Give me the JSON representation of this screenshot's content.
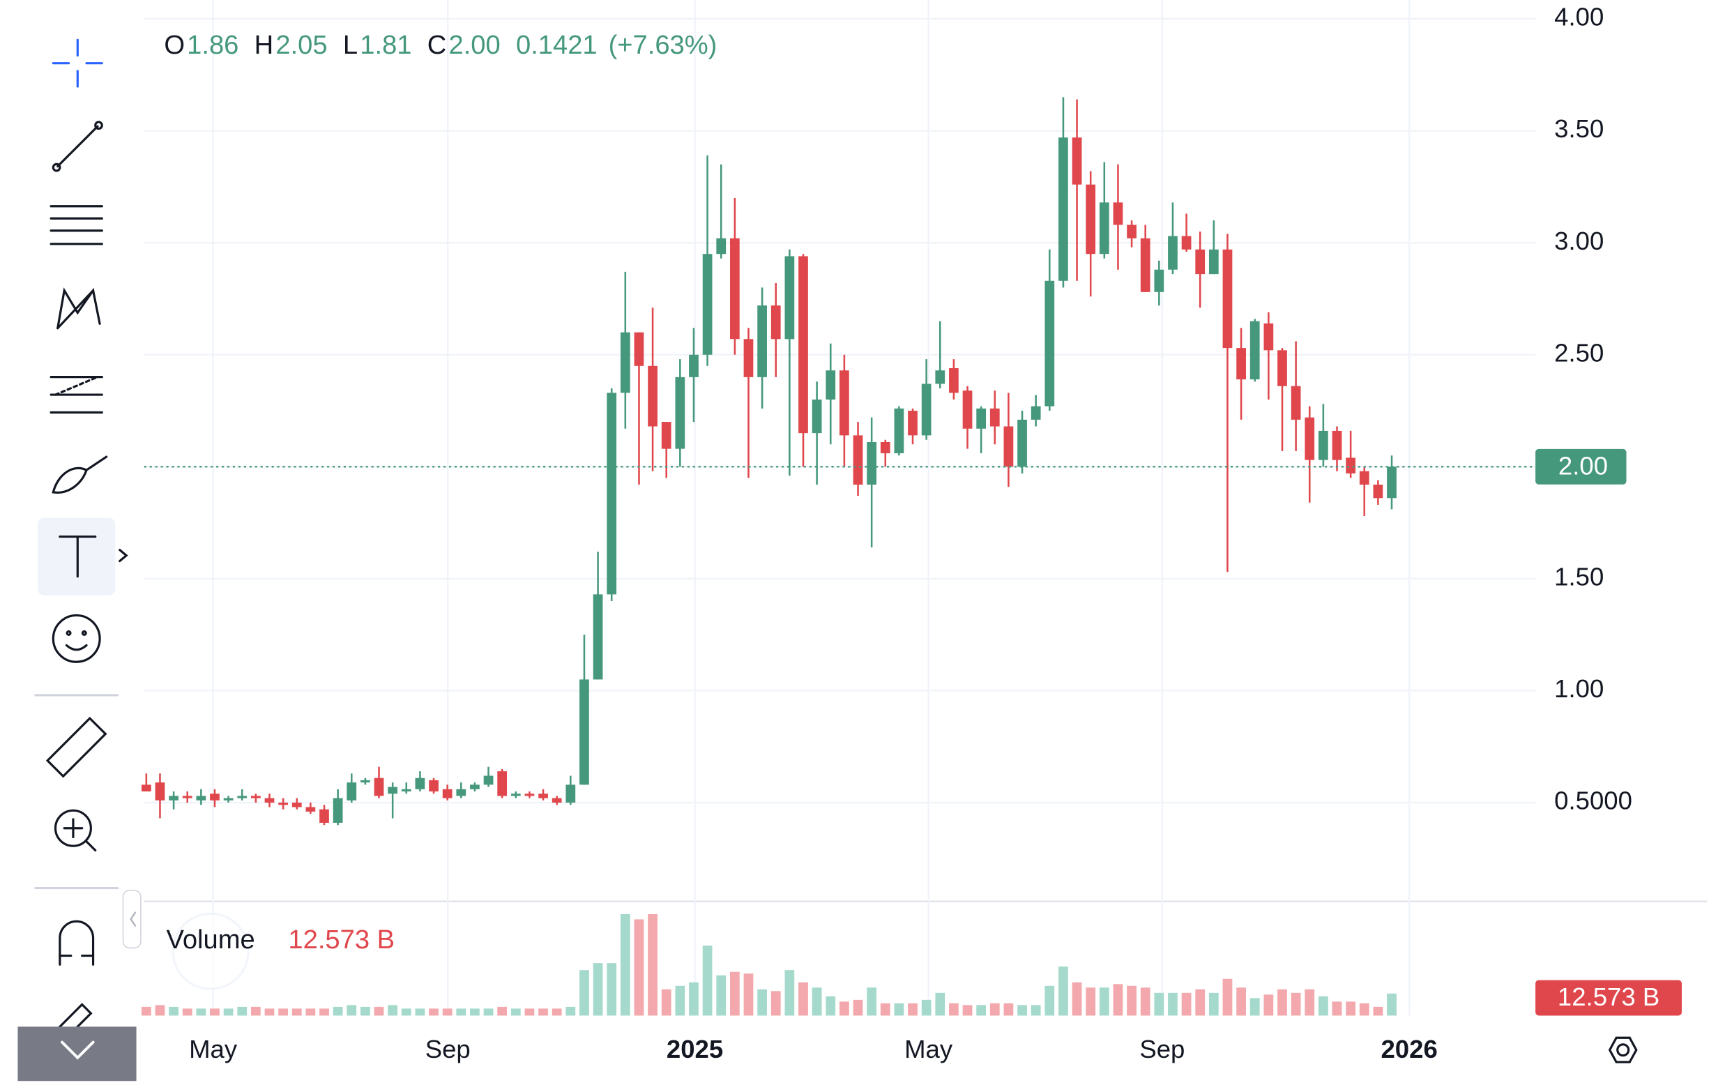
{
  "chart_data": {
    "type": "candlestick",
    "legend": {
      "labels": [
        "O",
        "H",
        "L",
        "C"
      ],
      "values": [
        {
          "value": 1.86,
          "label": "1.86"
        },
        {
          "value": 2.05,
          "label": "2.05"
        },
        {
          "value": 1.81,
          "label": "1.81"
        },
        {
          "value": 2.0,
          "label": "2.00"
        }
      ],
      "change": 0.1421,
      "change_percent_label": "(+7.63%)"
    },
    "categories": [
      null,
      null,
      null,
      null,
      null,
      null,
      null,
      null,
      null,
      null,
      null,
      null,
      null,
      null,
      null,
      null,
      null,
      null,
      null,
      null,
      null,
      null,
      null,
      null,
      null,
      null,
      null,
      null,
      null,
      null,
      null,
      null,
      null,
      null,
      null,
      null,
      null,
      null,
      null,
      null,
      null,
      null,
      null,
      null,
      null,
      null,
      null,
      null,
      null,
      null,
      null,
      null,
      null,
      null,
      null,
      null,
      null,
      null,
      null,
      null,
      null,
      null,
      null,
      null,
      null,
      null,
      null,
      null,
      null,
      null,
      null,
      null,
      null,
      null,
      null,
      null,
      null,
      null,
      null,
      null,
      null,
      null,
      null,
      null,
      null,
      null,
      null,
      null,
      null,
      null,
      null,
      null
    ],
    "open": [
      0.58,
      0.59,
      0.51,
      0.53,
      0.51,
      0.54,
      0.51,
      0.52,
      0.53,
      0.52,
      0.5,
      0.5,
      0.48,
      0.47,
      0.41,
      0.51,
      0.59,
      0.61,
      0.54,
      0.55,
      0.56,
      0.6,
      0.56,
      0.53,
      0.56,
      0.58,
      0.64,
      0.53,
      0.54,
      0.54,
      0.52,
      0.5,
      0.58,
      1.05,
      1.43,
      2.33,
      2.6,
      2.45,
      2.2,
      2.08,
      2.4,
      2.5,
      2.95,
      3.02,
      2.57,
      2.4,
      2.72,
      2.57,
      2.94,
      2.15,
      2.3,
      2.43,
      2.14,
      1.92,
      2.11,
      2.06,
      2.25,
      2.14,
      2.37,
      2.44,
      2.34,
      2.17,
      2.26,
      2.18,
      2.0,
      2.21,
      2.27,
      2.83,
      3.47,
      3.26,
      2.95,
      3.18,
      3.08,
      3.02,
      2.78,
      2.88,
      3.03,
      2.97,
      2.86,
      2.97,
      2.53,
      2.39,
      2.64,
      2.52,
      2.36,
      2.22,
      2.03,
      2.16,
      2.04,
      1.98,
      1.92,
      1.86
    ],
    "high": [
      0.63,
      0.63,
      0.55,
      0.55,
      0.56,
      0.56,
      0.53,
      0.56,
      0.54,
      0.54,
      0.52,
      0.52,
      0.5,
      0.49,
      0.56,
      0.63,
      0.61,
      0.66,
      0.59,
      0.59,
      0.64,
      0.61,
      0.58,
      0.59,
      0.59,
      0.66,
      0.65,
      0.55,
      0.55,
      0.56,
      0.53,
      0.62,
      1.25,
      1.62,
      2.35,
      2.87,
      2.6,
      2.71,
      2.2,
      2.48,
      2.62,
      3.39,
      3.35,
      3.2,
      2.62,
      2.8,
      2.82,
      2.97,
      2.95,
      2.38,
      2.55,
      2.5,
      2.2,
      2.22,
      2.12,
      2.27,
      2.26,
      2.48,
      2.65,
      2.48,
      2.36,
      2.27,
      2.34,
      2.33,
      2.25,
      2.32,
      2.97,
      3.65,
      3.64,
      3.32,
      3.36,
      3.35,
      3.1,
      3.08,
      2.92,
      3.18,
      3.13,
      3.05,
      3.1,
      3.04,
      2.62,
      2.66,
      2.69,
      2.53,
      2.56,
      2.27,
      2.28,
      2.18,
      2.16,
      2.0,
      1.94,
      2.05
    ],
    "low": [
      0.55,
      0.43,
      0.47,
      0.5,
      0.49,
      0.48,
      0.5,
      0.51,
      0.5,
      0.48,
      0.47,
      0.47,
      0.45,
      0.4,
      0.4,
      0.5,
      0.58,
      0.52,
      0.43,
      0.54,
      0.55,
      0.54,
      0.51,
      0.52,
      0.55,
      0.57,
      0.52,
      0.52,
      0.52,
      0.51,
      0.49,
      0.49,
      0.58,
      1.05,
      1.4,
      2.17,
      1.92,
      1.98,
      1.95,
      2.0,
      2.2,
      2.45,
      2.93,
      2.5,
      1.95,
      2.26,
      2.4,
      1.96,
      2.0,
      1.92,
      2.1,
      2.0,
      1.87,
      1.64,
      2.0,
      2.05,
      2.1,
      2.12,
      2.35,
      2.3,
      2.08,
      2.06,
      2.1,
      1.91,
      1.97,
      2.18,
      2.25,
      2.8,
      2.83,
      2.76,
      2.93,
      2.88,
      2.98,
      2.78,
      2.72,
      2.86,
      2.96,
      2.71,
      2.86,
      1.53,
      2.21,
      2.38,
      2.3,
      2.07,
      2.07,
      1.84,
      2.0,
      1.98,
      1.95,
      1.78,
      1.83,
      1.81
    ],
    "close": [
      0.55,
      0.51,
      0.53,
      0.52,
      0.53,
      0.51,
      0.52,
      0.53,
      0.52,
      0.5,
      0.49,
      0.48,
      0.46,
      0.41,
      0.52,
      0.59,
      0.6,
      0.53,
      0.57,
      0.56,
      0.61,
      0.55,
      0.52,
      0.56,
      0.58,
      0.62,
      0.53,
      0.54,
      0.53,
      0.52,
      0.5,
      0.58,
      1.05,
      1.43,
      2.33,
      2.6,
      2.45,
      2.18,
      2.08,
      2.4,
      2.5,
      2.95,
      3.02,
      2.57,
      2.4,
      2.72,
      2.57,
      2.94,
      2.15,
      2.3,
      2.43,
      2.14,
      1.92,
      2.11,
      2.06,
      2.26,
      2.14,
      2.37,
      2.43,
      2.33,
      2.17,
      2.26,
      2.18,
      2.0,
      2.21,
      2.27,
      2.83,
      3.47,
      3.26,
      2.95,
      3.18,
      3.08,
      3.02,
      2.78,
      2.88,
      3.03,
      2.97,
      2.86,
      2.97,
      2.53,
      2.39,
      2.65,
      2.52,
      2.36,
      2.21,
      2.03,
      2.16,
      2.03,
      1.97,
      1.92,
      1.86,
      2.0
    ],
    "volume": {
      "name": "Volume",
      "last_label": "12.573 B",
      "values": [
        5,
        6,
        5,
        4,
        4,
        4,
        4,
        5,
        5,
        4,
        4,
        4,
        4,
        4,
        5,
        6,
        5,
        5,
        6,
        4,
        4,
        4,
        4,
        4,
        4,
        4,
        5,
        4,
        4,
        4,
        4,
        5,
        26,
        30,
        30,
        58,
        55,
        58,
        15,
        17,
        19,
        40,
        23,
        25,
        24,
        15,
        14,
        26,
        19,
        16,
        11,
        8,
        9,
        16,
        7,
        7,
        7,
        9,
        13,
        7,
        6,
        6,
        7,
        7,
        6,
        6,
        17,
        28,
        19,
        16,
        16,
        18,
        17,
        16,
        13,
        13,
        13,
        15,
        13,
        21,
        16,
        10,
        12,
        15,
        13,
        15,
        11,
        8,
        8,
        7,
        5,
        12.573
      ],
      "ylim": [
        0,
        64
      ]
    },
    "up_color": "#45987c",
    "down_color": "#e0474c",
    "up_volume_color": "#a4d9cb",
    "down_volume_color": "#f2a8ac",
    "last_price": {
      "value": 2.0,
      "label": "2.00"
    },
    "ylim": [
      0.064,
      4.084
    ],
    "yticks": [
      {
        "value": 0.5,
        "label": "0.5000"
      },
      {
        "value": 1.0,
        "label": "1.00"
      },
      {
        "value": 1.5,
        "label": "1.50"
      },
      {
        "value": 2.0,
        "label": "2.00"
      },
      {
        "value": 2.5,
        "label": "2.50"
      },
      {
        "value": 3.0,
        "label": "3.00"
      },
      {
        "value": 3.5,
        "label": "3.50"
      },
      {
        "value": 4.0,
        "label": "4.00"
      }
    ],
    "xlim": [
      -0.16,
      101.5
    ],
    "xticks": [
      {
        "value": 4.88,
        "label": "May"
      },
      {
        "value": 22.03,
        "label": "Sep"
      },
      {
        "value": 40.08,
        "label": "2025"
      },
      {
        "value": 57.15,
        "label": "May"
      },
      {
        "value": 74.23,
        "label": "Sep"
      },
      {
        "value": 92.28,
        "label": "2026"
      }
    ],
    "grid": true
  }
}
